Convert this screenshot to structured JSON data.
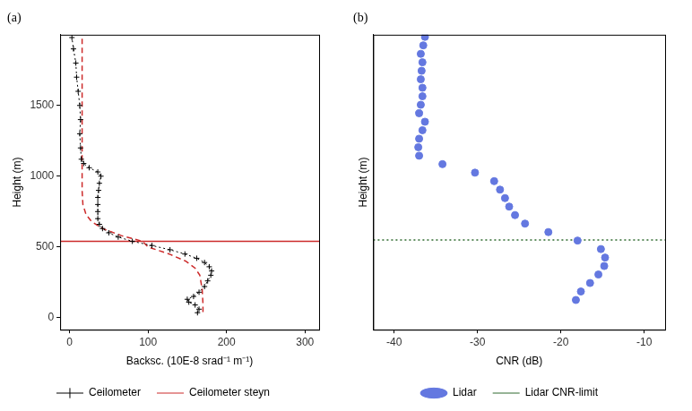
{
  "chart_data": [
    {
      "type": "line",
      "title": "(a)",
      "x_label": "Backsc. (10E-8 srad⁻¹ m⁻¹)",
      "y_label": "Height (m)",
      "xlim": [
        -12,
        318
      ],
      "xticks": [
        0,
        100,
        200,
        300
      ],
      "ylim": [
        -85,
        2000
      ],
      "yticks": [
        0,
        500,
        1000,
        1500
      ],
      "grid": false,
      "legend": "bottom",
      "series": [
        {
          "name": "Ceilometer",
          "type": "line",
          "color": "#000000",
          "marker": "cross",
          "line_style": "dotted",
          "x": [
            163,
            165,
            160,
            152,
            150,
            158,
            165,
            172,
            176,
            180,
            181,
            178,
            172,
            162,
            147,
            128,
            105,
            80,
            62,
            50,
            42,
            38,
            36,
            36,
            36,
            36,
            37,
            38,
            40,
            36,
            25,
            18,
            15,
            14,
            13,
            14,
            13,
            11,
            9,
            8,
            5,
            3
          ],
          "y": [
            35,
            60,
            90,
            110,
            130,
            150,
            180,
            220,
            260,
            300,
            330,
            360,
            390,
            420,
            450,
            480,
            510,
            540,
            570,
            600,
            630,
            660,
            700,
            750,
            800,
            850,
            900,
            950,
            1000,
            1030,
            1060,
            1090,
            1120,
            1200,
            1300,
            1400,
            1500,
            1600,
            1700,
            1800,
            1900,
            1980
          ]
        },
        {
          "name": "Ceilometer steyn",
          "type": "line",
          "color": "#cc2a2a",
          "line_style": "dashed",
          "x": [
            170,
            170,
            169,
            166,
            160,
            148,
            127,
            100,
            93,
            66,
            42,
            28,
            21,
            17,
            16,
            16,
            16,
            16
          ],
          "y": [
            40,
            100,
            200,
            300,
            350,
            400,
            450,
            500,
            540,
            580,
            630,
            680,
            730,
            800,
            900,
            1200,
            1600,
            1980
          ]
        },
        {
          "type": "hline",
          "color": "#cc2a2a",
          "line_style": "solid",
          "value": 540
        }
      ]
    },
    {
      "type": "scatter",
      "title": "(b)",
      "x_label": "CNR (dB)",
      "y_label": "Height (m)",
      "xlim": [
        -42.5,
        -7.5
      ],
      "xticks": [
        -40,
        -30,
        -20,
        -10
      ],
      "ylim": [
        -85,
        2000
      ],
      "tick_labels": "x",
      "grid": false,
      "legend": "bottom",
      "series": [
        {
          "name": "Lidar",
          "type": "scatter",
          "color": "#6478e0",
          "marker": "circle",
          "x": [
            -18.2,
            -17.6,
            -16.5,
            -15.5,
            -14.8,
            -14.7,
            -15.2,
            -18.0,
            -21.5,
            -24.3,
            -25.5,
            -26.2,
            -26.7,
            -27.3,
            -28.0,
            -30.3,
            -34.2,
            -37.0,
            -37.1,
            -37.0,
            -36.6,
            -36.3,
            -37.0,
            -36.8,
            -36.6,
            -36.6,
            -36.8,
            -36.7,
            -36.6,
            -36.8,
            -36.5,
            -36.3
          ],
          "y": [
            125,
            185,
            245,
            305,
            365,
            425,
            485,
            545,
            605,
            665,
            725,
            785,
            845,
            905,
            965,
            1025,
            1085,
            1145,
            1205,
            1265,
            1325,
            1385,
            1445,
            1505,
            1565,
            1625,
            1685,
            1745,
            1805,
            1865,
            1925,
            1985
          ]
        },
        {
          "name": "Lidar CNR-limit",
          "type": "hline",
          "color": "#2f6b2f",
          "line_style": "dotted",
          "value": 550
        }
      ]
    }
  ]
}
